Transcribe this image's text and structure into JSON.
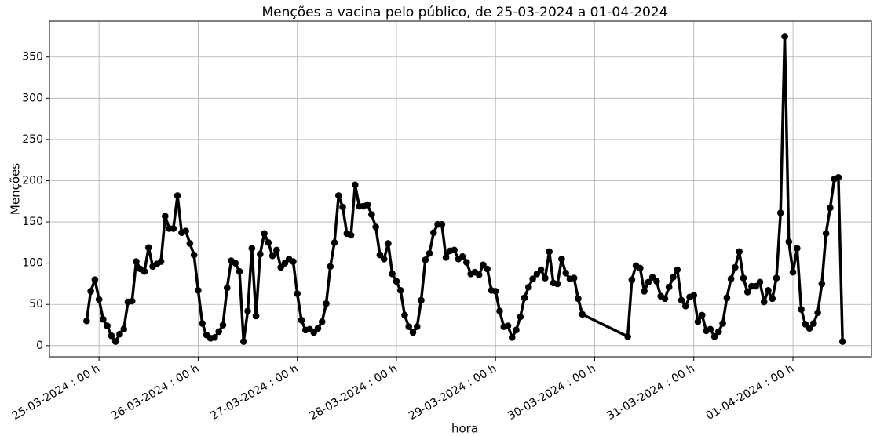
{
  "chart_data": {
    "type": "line",
    "title": "Menções a vacina pelo público, de 25-03-2024 a 01-04-2024",
    "xlabel": "hora",
    "ylabel": "Menções",
    "color": "#000000",
    "grid": true,
    "x": [
      "24-03-2024 : 21 h",
      "24-03-2024 : 22 h",
      "24-03-2024 : 23 h",
      "25-03-2024 : 00 h",
      "25-03-2024 : 01 h",
      "25-03-2024 : 02 h",
      "25-03-2024 : 03 h",
      "25-03-2024 : 04 h",
      "25-03-2024 : 05 h",
      "25-03-2024 : 06 h",
      "25-03-2024 : 07 h",
      "25-03-2024 : 08 h",
      "25-03-2024 : 09 h",
      "25-03-2024 : 10 h",
      "25-03-2024 : 11 h",
      "25-03-2024 : 12 h",
      "25-03-2024 : 13 h",
      "25-03-2024 : 14 h",
      "25-03-2024 : 15 h",
      "25-03-2024 : 16 h",
      "25-03-2024 : 17 h",
      "25-03-2024 : 18 h",
      "25-03-2024 : 19 h",
      "25-03-2024 : 20 h",
      "25-03-2024 : 21 h",
      "25-03-2024 : 22 h",
      "25-03-2024 : 23 h",
      "26-03-2024 : 00 h",
      "26-03-2024 : 01 h",
      "26-03-2024 : 02 h",
      "26-03-2024 : 03 h",
      "26-03-2024 : 04 h",
      "26-03-2024 : 05 h",
      "26-03-2024 : 06 h",
      "26-03-2024 : 07 h",
      "26-03-2024 : 08 h",
      "26-03-2024 : 09 h",
      "26-03-2024 : 10 h",
      "26-03-2024 : 11 h",
      "26-03-2024 : 12 h",
      "26-03-2024 : 13 h",
      "26-03-2024 : 14 h",
      "26-03-2024 : 15 h",
      "26-03-2024 : 16 h",
      "26-03-2024 : 17 h",
      "26-03-2024 : 18 h",
      "26-03-2024 : 19 h",
      "26-03-2024 : 20 h",
      "26-03-2024 : 21 h",
      "26-03-2024 : 22 h",
      "26-03-2024 : 23 h",
      "27-03-2024 : 00 h",
      "27-03-2024 : 01 h",
      "27-03-2024 : 02 h",
      "27-03-2024 : 03 h",
      "27-03-2024 : 04 h",
      "27-03-2024 : 05 h",
      "27-03-2024 : 06 h",
      "27-03-2024 : 07 h",
      "27-03-2024 : 08 h",
      "27-03-2024 : 09 h",
      "27-03-2024 : 10 h",
      "27-03-2024 : 11 h",
      "27-03-2024 : 12 h",
      "27-03-2024 : 13 h",
      "27-03-2024 : 14 h",
      "27-03-2024 : 15 h",
      "27-03-2024 : 16 h",
      "27-03-2024 : 17 h",
      "27-03-2024 : 18 h",
      "27-03-2024 : 19 h",
      "27-03-2024 : 20 h",
      "27-03-2024 : 21 h",
      "27-03-2024 : 22 h",
      "27-03-2024 : 23 h",
      "28-03-2024 : 00 h",
      "28-03-2024 : 01 h",
      "28-03-2024 : 02 h",
      "28-03-2024 : 03 h",
      "28-03-2024 : 04 h",
      "28-03-2024 : 05 h",
      "28-03-2024 : 06 h",
      "28-03-2024 : 07 h",
      "28-03-2024 : 08 h",
      "28-03-2024 : 09 h",
      "28-03-2024 : 10 h",
      "28-03-2024 : 11 h",
      "28-03-2024 : 12 h",
      "28-03-2024 : 13 h",
      "28-03-2024 : 14 h",
      "28-03-2024 : 15 h",
      "28-03-2024 : 16 h",
      "28-03-2024 : 17 h",
      "28-03-2024 : 18 h",
      "28-03-2024 : 19 h",
      "28-03-2024 : 20 h",
      "28-03-2024 : 21 h",
      "28-03-2024 : 22 h",
      "28-03-2024 : 23 h",
      "29-03-2024 : 00 h",
      "29-03-2024 : 01 h",
      "29-03-2024 : 02 h",
      "29-03-2024 : 03 h",
      "29-03-2024 : 04 h",
      "29-03-2024 : 05 h",
      "29-03-2024 : 06 h",
      "29-03-2024 : 07 h",
      "29-03-2024 : 08 h",
      "29-03-2024 : 09 h",
      "29-03-2024 : 10 h",
      "29-03-2024 : 11 h",
      "29-03-2024 : 12 h",
      "29-03-2024 : 13 h",
      "29-03-2024 : 14 h",
      "29-03-2024 : 15 h",
      "29-03-2024 : 16 h",
      "29-03-2024 : 17 h",
      "29-03-2024 : 18 h",
      "29-03-2024 : 19 h",
      "29-03-2024 : 20 h",
      "29-03-2024 : 21 h",
      "30-03-2024 : 08 h",
      "30-03-2024 : 09 h",
      "30-03-2024 : 10 h",
      "30-03-2024 : 11 h",
      "30-03-2024 : 12 h",
      "30-03-2024 : 13 h",
      "30-03-2024 : 14 h",
      "30-03-2024 : 15 h",
      "30-03-2024 : 16 h",
      "30-03-2024 : 17 h",
      "30-03-2024 : 18 h",
      "30-03-2024 : 19 h",
      "30-03-2024 : 20 h",
      "30-03-2024 : 21 h",
      "30-03-2024 : 22 h",
      "30-03-2024 : 23 h",
      "31-03-2024 : 00 h",
      "31-03-2024 : 01 h",
      "31-03-2024 : 02 h",
      "31-03-2024 : 03 h",
      "31-03-2024 : 04 h",
      "31-03-2024 : 05 h",
      "31-03-2024 : 06 h",
      "31-03-2024 : 07 h",
      "31-03-2024 : 08 h",
      "31-03-2024 : 09 h",
      "31-03-2024 : 10 h",
      "31-03-2024 : 11 h",
      "31-03-2024 : 12 h",
      "31-03-2024 : 13 h",
      "31-03-2024 : 14 h",
      "31-03-2024 : 15 h",
      "31-03-2024 : 16 h",
      "31-03-2024 : 17 h",
      "31-03-2024 : 18 h",
      "31-03-2024 : 19 h",
      "31-03-2024 : 20 h",
      "31-03-2024 : 21 h",
      "31-03-2024 : 22 h",
      "31-03-2024 : 23 h",
      "01-04-2024 : 00 h",
      "01-04-2024 : 01 h",
      "01-04-2024 : 02 h",
      "01-04-2024 : 03 h",
      "01-04-2024 : 04 h",
      "01-04-2024 : 05 h",
      "01-04-2024 : 06 h",
      "01-04-2024 : 07 h",
      "01-04-2024 : 08 h",
      "01-04-2024 : 09 h",
      "01-04-2024 : 10 h",
      "01-04-2024 : 11 h",
      "01-04-2024 : 12 h"
    ],
    "values": [
      30,
      66,
      80,
      56,
      32,
      24,
      12,
      5,
      14,
      20,
      53,
      54,
      102,
      93,
      90,
      119,
      96,
      99,
      102,
      157,
      142,
      142,
      182,
      137,
      139,
      124,
      110,
      67,
      27,
      13,
      9,
      10,
      17,
      25,
      70,
      103,
      100,
      90,
      5,
      42,
      118,
      36,
      111,
      136,
      125,
      109,
      116,
      95,
      100,
      105,
      102,
      63,
      31,
      19,
      20,
      16,
      21,
      29,
      51,
      96,
      125,
      182,
      168,
      136,
      134,
      195,
      169,
      169,
      171,
      159,
      144,
      110,
      105,
      124,
      87,
      78,
      67,
      37,
      23,
      16,
      23,
      55,
      104,
      112,
      137,
      147,
      147,
      107,
      115,
      116,
      105,
      108,
      101,
      87,
      89,
      86,
      98,
      93,
      67,
      66,
      42,
      23,
      24,
      10,
      19,
      35,
      58,
      71,
      81,
      87,
      92,
      82,
      114,
      76,
      75,
      105,
      88,
      81,
      82,
      57,
      38,
      11,
      80,
      97,
      94,
      66,
      77,
      83,
      78,
      60,
      57,
      71,
      83,
      92,
      55,
      48,
      59,
      61,
      29,
      37,
      18,
      20,
      11,
      17,
      27,
      58,
      81,
      95,
      114,
      82,
      65,
      72,
      72,
      77,
      53,
      67,
      57,
      82,
      161,
      375,
      126,
      89,
      118,
      44,
      26,
      21,
      27,
      40,
      75,
      136,
      167,
      202,
      204,
      5
    ],
    "xlim": [
      "24-03-2024 : 12 h",
      "01-04-2024 : 19 h"
    ],
    "xticks": [
      "25-03-2024 : 00 h",
      "26-03-2024 : 00 h",
      "27-03-2024 : 00 h",
      "28-03-2024 : 00 h",
      "29-03-2024 : 00 h",
      "30-03-2024 : 00 h",
      "31-03-2024 : 00 h",
      "01-04-2024 : 00 h"
    ],
    "ylim": [
      -13.5,
      393.5
    ],
    "yticks": [
      0,
      50,
      100,
      150,
      200,
      250,
      300,
      350
    ]
  }
}
